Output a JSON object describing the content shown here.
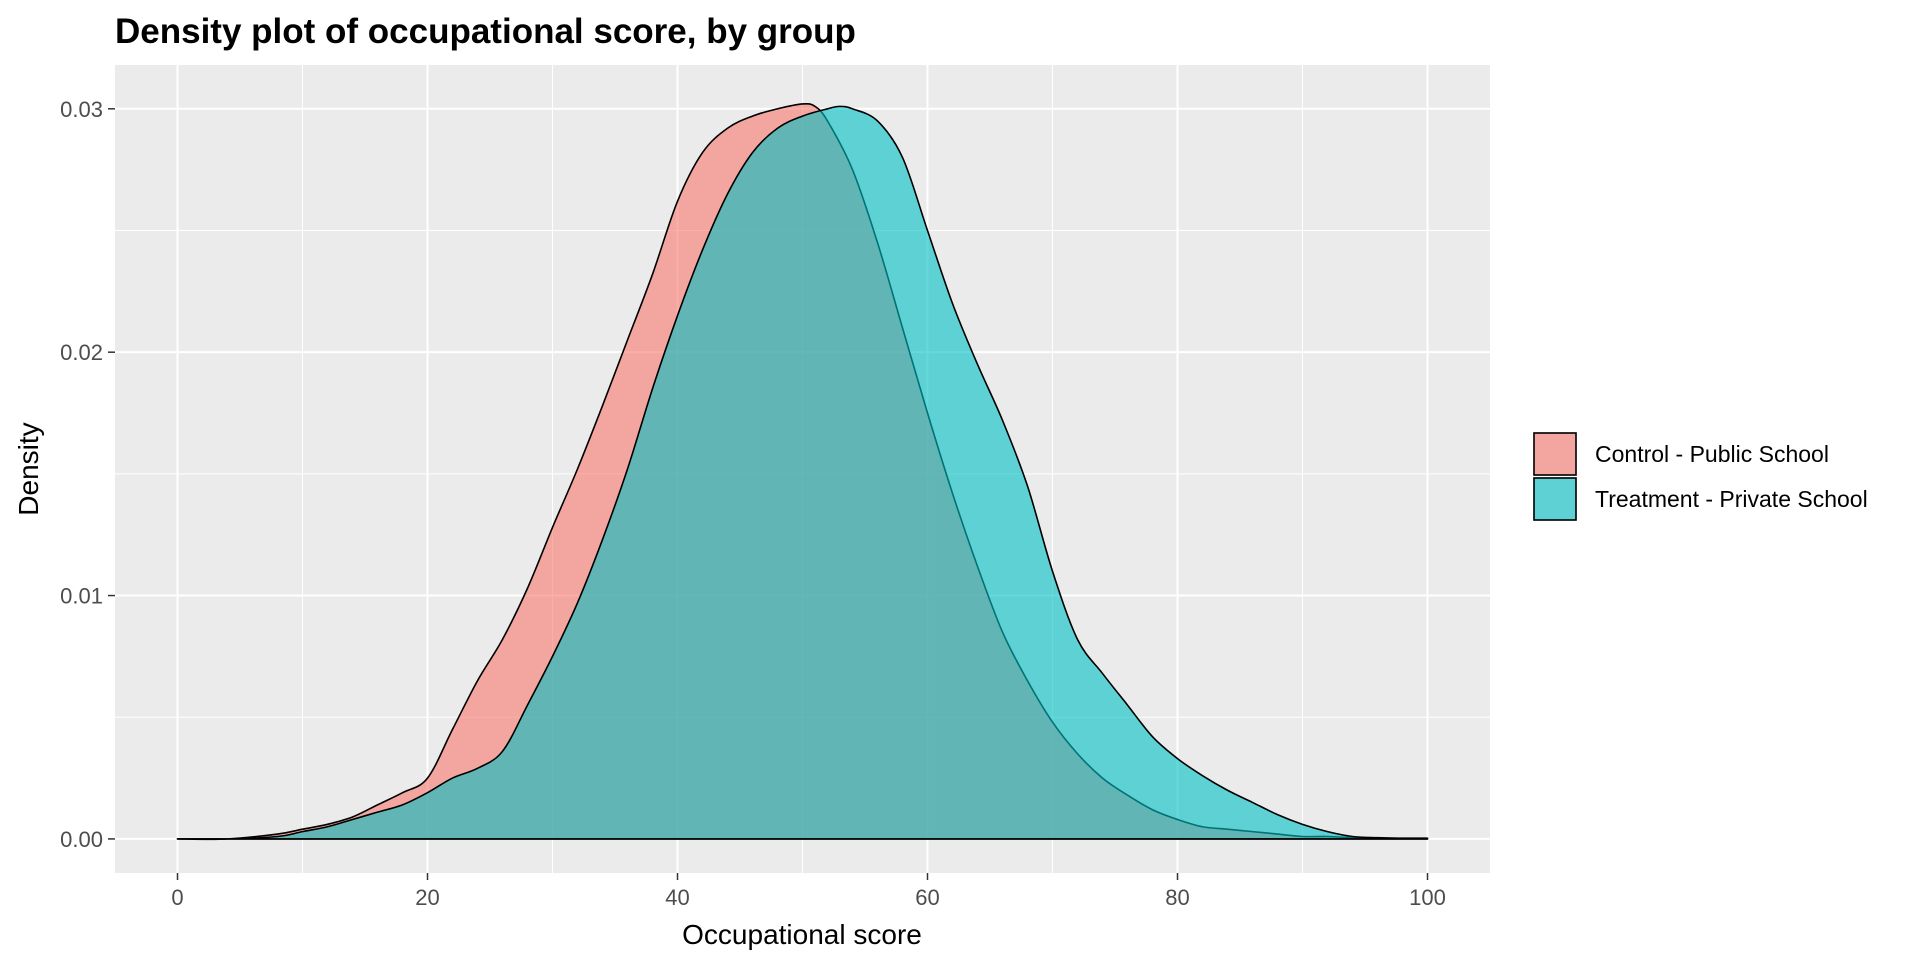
{
  "chart_data": {
    "type": "area",
    "title": "Density plot of occupational score, by group",
    "xlabel": "Occupational score",
    "ylabel": "Density",
    "xlim": [
      -5,
      105
    ],
    "ylim": [
      -0.0014,
      0.0318
    ],
    "xticks": [
      0,
      20,
      40,
      60,
      80,
      100
    ],
    "xtick_labels": [
      "0",
      "20",
      "40",
      "60",
      "80",
      "100"
    ],
    "yticks": [
      0.0,
      0.01,
      0.02,
      0.03
    ],
    "ytick_labels": [
      "0.00",
      "0.01",
      "0.02",
      "0.03"
    ],
    "grid": true,
    "legend_position": "right",
    "series": [
      {
        "name": "Control - Public School",
        "color": "#F8766D",
        "x": [
          0,
          4,
          8,
          10,
          12,
          14,
          16,
          18,
          20,
          22,
          24,
          26,
          28,
          30,
          32,
          34,
          36,
          38,
          40,
          42,
          44,
          46,
          48,
          50,
          51,
          52,
          54,
          56,
          58,
          60,
          62,
          64,
          66,
          68,
          70,
          72,
          74,
          76,
          78,
          80,
          82,
          84,
          86,
          88,
          90,
          92,
          94,
          96,
          98,
          100
        ],
        "y": [
          0.0,
          0.0,
          0.0002,
          0.0004,
          0.0006,
          0.0009,
          0.0014,
          0.0019,
          0.0025,
          0.0045,
          0.0065,
          0.0082,
          0.0103,
          0.0128,
          0.0152,
          0.0178,
          0.0205,
          0.0232,
          0.0262,
          0.0282,
          0.0292,
          0.0297,
          0.03,
          0.0302,
          0.0301,
          0.0295,
          0.0275,
          0.0245,
          0.021,
          0.0175,
          0.0142,
          0.0112,
          0.0085,
          0.0065,
          0.0048,
          0.0035,
          0.0025,
          0.0018,
          0.0012,
          0.0008,
          0.0005,
          0.0004,
          0.0003,
          0.0002,
          0.0001,
          0.0001,
          5e-05,
          0.0,
          0.0,
          0.0
        ]
      },
      {
        "name": "Treatment - Private School",
        "color": "#00BFC4",
        "x": [
          0,
          4,
          8,
          10,
          12,
          14,
          16,
          18,
          20,
          22,
          24,
          26,
          28,
          30,
          32,
          34,
          36,
          38,
          40,
          42,
          44,
          46,
          48,
          50,
          52,
          53,
          54,
          56,
          58,
          60,
          62,
          64,
          66,
          68,
          70,
          72,
          74,
          76,
          78,
          80,
          82,
          84,
          86,
          88,
          90,
          92,
          94,
          96,
          98,
          100
        ],
        "y": [
          0.0,
          0.0,
          0.0001,
          0.0003,
          0.0005,
          0.0008,
          0.0011,
          0.0014,
          0.0019,
          0.0025,
          0.0029,
          0.0036,
          0.0055,
          0.0075,
          0.0097,
          0.0123,
          0.0152,
          0.0185,
          0.0215,
          0.0242,
          0.0265,
          0.0282,
          0.0292,
          0.0297,
          0.03,
          0.0301,
          0.03,
          0.0295,
          0.028,
          0.025,
          0.022,
          0.0195,
          0.0172,
          0.0145,
          0.011,
          0.0082,
          0.0068,
          0.0055,
          0.0042,
          0.0033,
          0.0026,
          0.002,
          0.0015,
          0.001,
          0.0006,
          0.0003,
          0.0001,
          5e-05,
          3e-05,
          3e-05
        ]
      }
    ]
  }
}
